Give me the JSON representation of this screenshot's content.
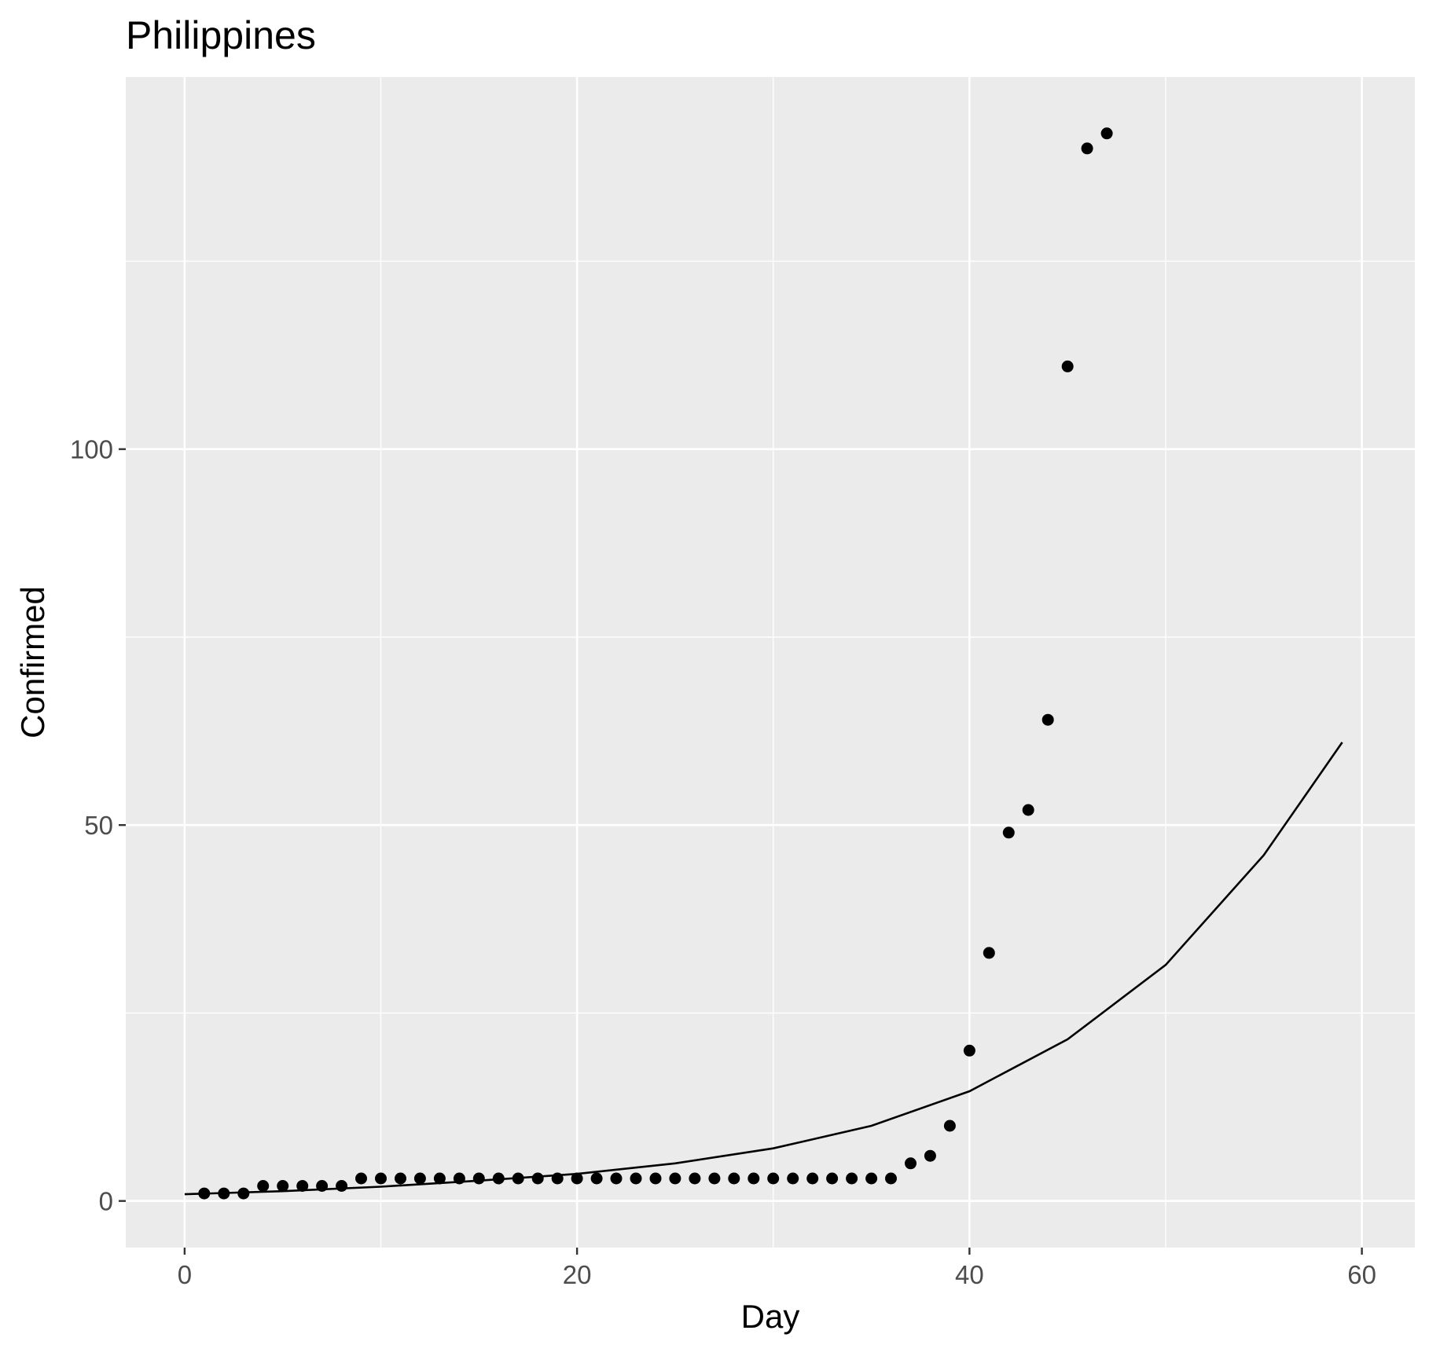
{
  "chart_data": {
    "type": "scatter",
    "title": "Philippines",
    "xlabel": "Day",
    "ylabel": "Confirmed",
    "xlim": [
      -3,
      62.7
    ],
    "ylim": [
      -6.2,
      149.5
    ],
    "x_ticks": [
      0,
      20,
      40,
      60
    ],
    "x_tick_labels": [
      "0",
      "20",
      "40",
      "60"
    ],
    "y_ticks": [
      0,
      50,
      100
    ],
    "y_tick_labels": [
      "0",
      "50",
      "100"
    ],
    "x_minor": [
      10,
      30,
      50
    ],
    "y_minor": [
      25,
      75,
      125
    ],
    "grid": true,
    "legend": "none",
    "series": [
      {
        "kind": "points",
        "x": [
          1,
          2,
          3,
          4,
          5,
          6,
          7,
          8,
          9,
          10,
          11,
          12,
          13,
          14,
          15,
          16,
          17,
          18,
          19,
          20,
          21,
          22,
          23,
          24,
          25,
          26,
          27,
          28,
          29,
          30,
          31,
          32,
          33,
          34,
          35,
          36,
          37,
          38,
          39,
          40,
          41,
          42,
          43,
          44,
          45,
          46,
          47
        ],
        "y": [
          1,
          1,
          1,
          2,
          2,
          2,
          2,
          2,
          3,
          3,
          3,
          3,
          3,
          3,
          3,
          3,
          3,
          3,
          3,
          3,
          3,
          3,
          3,
          3,
          3,
          3,
          3,
          3,
          3,
          3,
          3,
          3,
          3,
          3,
          3,
          3,
          5,
          6,
          10,
          20,
          33,
          49,
          52,
          64,
          111,
          140,
          142
        ]
      },
      {
        "kind": "fitted-curve",
        "x": [
          0,
          5,
          10,
          15,
          20,
          25,
          30,
          35,
          40,
          45,
          50,
          55,
          59
        ],
        "y": [
          0.9,
          1.3,
          1.9,
          2.7,
          3.6,
          5.0,
          7.0,
          10.0,
          14.6,
          21.5,
          31.4,
          46.0,
          61.0
        ]
      }
    ]
  }
}
